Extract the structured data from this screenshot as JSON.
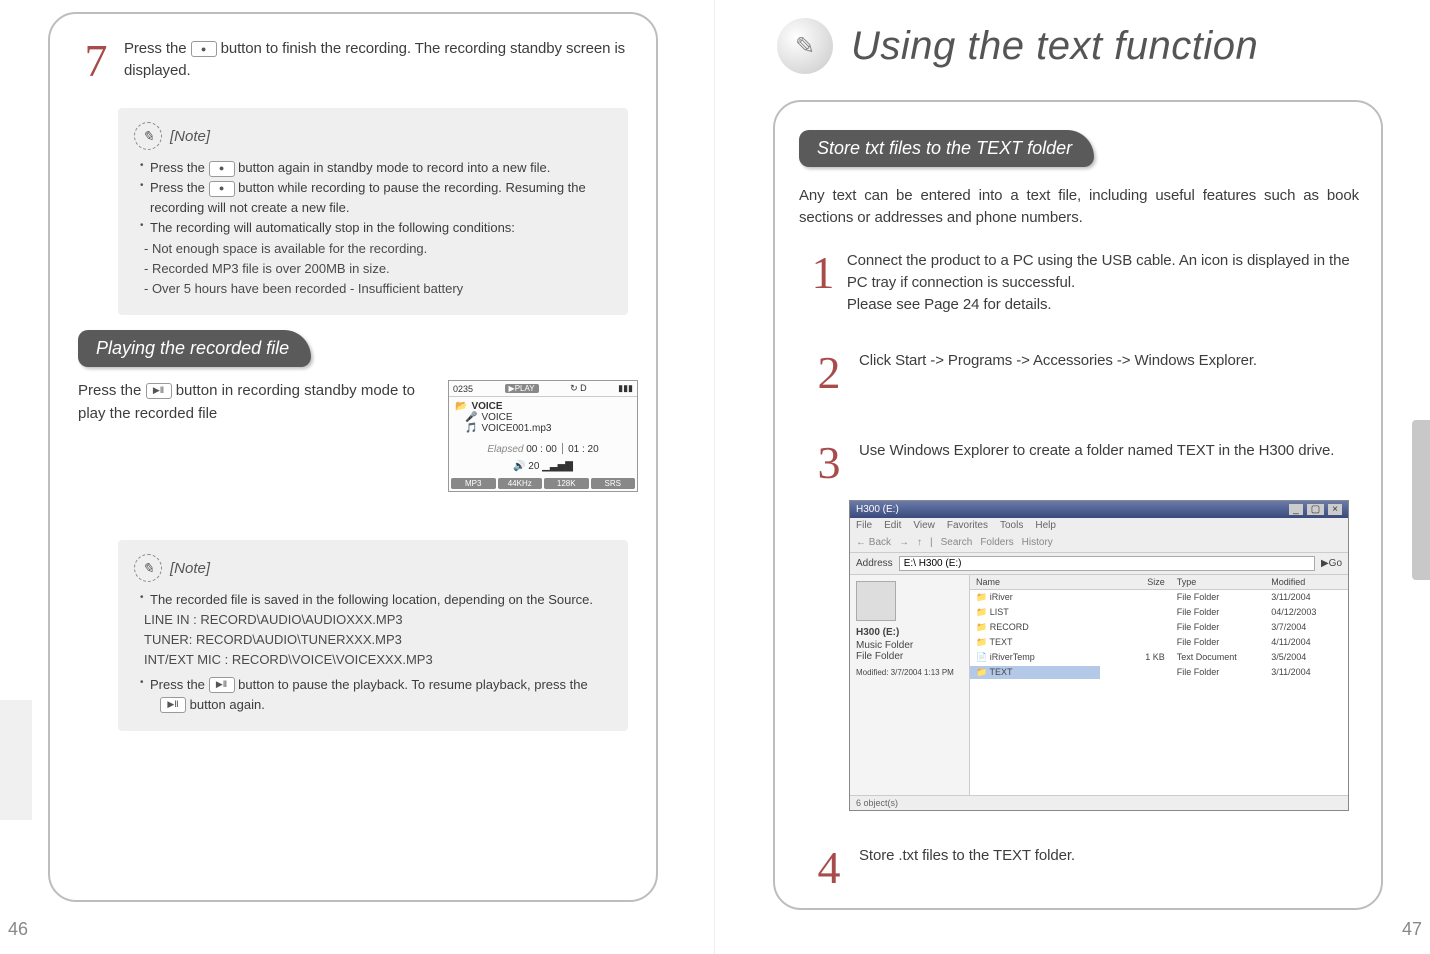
{
  "left": {
    "page_number": "46",
    "step7": {
      "num": "7",
      "text_a": "Press the ",
      "text_b": " button to finish the recording. The recording standby screen is displayed."
    },
    "note1": {
      "label": "[Note]",
      "items": [
        "Press the [rec] button again in standby mode to record into a new file.",
        "Press the [rec] button while recording to pause the recording. Resuming the recording will not create a new file.",
        "The recording will automatically stop in the following conditions:"
      ],
      "subitems": [
        "- Not enough space is available for the recording.",
        "- Recorded MP3 file is over 200MB in size.",
        "- Over 5 hours have been recorded   - Insufficient battery"
      ]
    },
    "play_section_title": "Playing the recorded file",
    "play_text_a": "Press the ",
    "play_text_b": " button in recording standby mode to play the recorded file",
    "screen": {
      "track_no": "0235",
      "play_badge": "▶PLAY",
      "folder1": "VOICE",
      "folder2": "VOICE",
      "file": "VOICE001.mp3",
      "elapsed_label": "Elapsed",
      "elapsed": "00 : 00",
      "total": "01 : 20",
      "signal": "20",
      "badges": [
        "MP3",
        "44KHz",
        "128K",
        "SRS"
      ]
    },
    "note2": {
      "label": "[Note]",
      "items": [
        "The recorded file is saved in the following location, depending on the Source."
      ],
      "paths": [
        "LINE IN : RECORD\\AUDIO\\AUDIOXXX.MP3",
        "TUNER: RECORD\\AUDIO\\TUNERXXX.MP3",
        "INT/EXT MIC : RECORD\\VOICE\\VOICEXXX.MP3"
      ],
      "press_a": "Press the ",
      "press_b": " button to pause the playback. To resume playback, press the ",
      "press_c": " button again."
    }
  },
  "right": {
    "page_number": "47",
    "title": "Using the text function",
    "section_title": "Store txt files to the TEXT folder",
    "intro": "Any text can be entered into a text file, including useful features such as book sections or addresses and phone numbers.",
    "step1": {
      "num": "1",
      "text": "Connect the product to a PC using the USB cable. An icon is displayed in the PC tray if connection is successful.\nPlease see Page 24 for details."
    },
    "step2": {
      "num": "2",
      "text": "Click Start -> Programs -> Accessories -> Windows Explorer."
    },
    "step3": {
      "num": "3",
      "text": "Use Windows Explorer to create a folder named TEXT in the H300 drive."
    },
    "step4": {
      "num": "4",
      "text": "Store .txt files to the TEXT folder."
    },
    "explorer": {
      "title_bar": "H300 (E:)",
      "menus": [
        "File",
        "Edit",
        "View",
        "Favorites",
        "Tools",
        "Help"
      ],
      "toolbar": [
        "← Back",
        "→",
        "↑",
        "Search",
        "Folders",
        "History"
      ],
      "addr_label": "Address",
      "addr": "E:\\ H300 (E:)",
      "side_drive": "H300 (E:)",
      "side_items": [
        "Music Folder",
        "File Folder"
      ],
      "side_status": "Modified: 3/7/2004 1:13 PM",
      "columns": [
        "Name",
        "Size",
        "Type",
        "Modified"
      ],
      "rows": [
        [
          "iRiver",
          "",
          "File Folder",
          "3/11/2004"
        ],
        [
          "LIST",
          "",
          "File Folder",
          "04/12/2003"
        ],
        [
          "RECORD",
          "",
          "File Folder",
          "3/7/2004"
        ],
        [
          "TEXT",
          "",
          "File Folder",
          "4/11/2004"
        ],
        [
          "iRiverTemp",
          "1 KB",
          "Text Document",
          "3/5/2004"
        ],
        [
          "TEXT",
          "",
          "File Folder",
          "3/11/2004"
        ]
      ],
      "status": "6 object(s)"
    }
  },
  "colors": {
    "stepnum": "#a84b4b",
    "panel_border": "#bdbdbd",
    "pill_bg": "#5a5a5a",
    "note_bg": "#efefef",
    "body_text": "#3d3d3d"
  }
}
